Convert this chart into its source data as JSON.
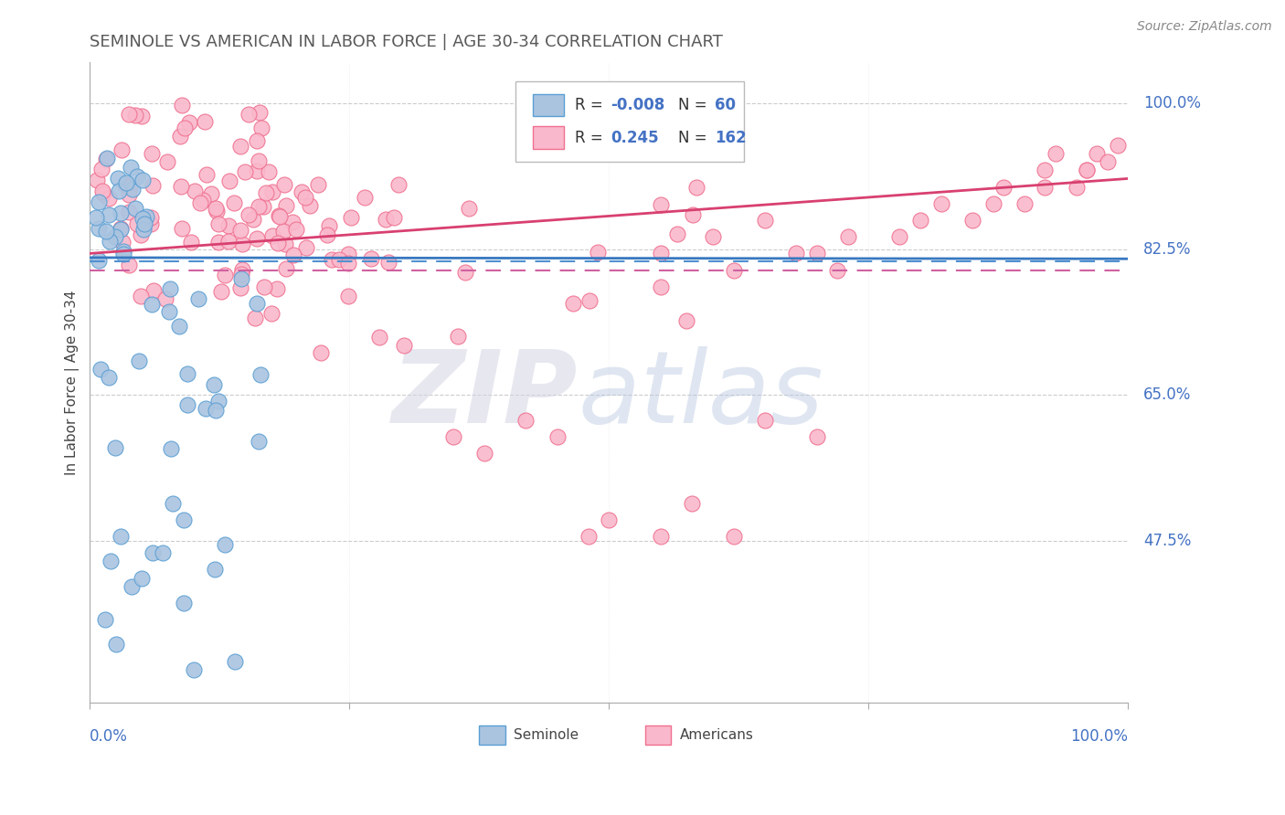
{
  "title": "SEMINOLE VS AMERICAN IN LABOR FORCE | AGE 30-34 CORRELATION CHART",
  "source": "Source: ZipAtlas.com",
  "seminole_color": "#aac4e0",
  "seminole_edge": "#5a9fd4",
  "americans_color": "#f9b8cb",
  "americans_edge": "#f07090",
  "bg_color": "#ffffff",
  "grid_color": "#cccccc",
  "axis_label_color": "#4472c4",
  "title_color": "#595959",
  "trend_seminole_color": "#3878c0",
  "trend_americans_color": "#d84070",
  "mean_seminole_color": "#5090d0",
  "mean_americans_color": "#d060a0",
  "R_seminole": -0.008,
  "N_seminole": 60,
  "R_americans": 0.245,
  "N_americans": 162,
  "ytick_labels": [
    "100.0%",
    "82.5%",
    "65.0%",
    "47.5%"
  ],
  "ytick_vals": [
    1.0,
    0.825,
    0.65,
    0.475
  ],
  "ylim_min": 0.28,
  "ylim_max": 1.05
}
